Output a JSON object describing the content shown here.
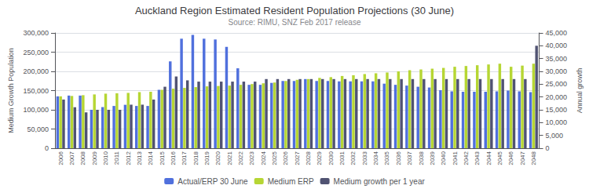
{
  "chart_data": {
    "type": "bar",
    "title": "Auckland Region Estimated Resident Population Projections (30 June)",
    "subtitle": "Source: RIMU, SNZ Feb 2017 release",
    "ylabel": "Medium Growth Population",
    "y2label": "Annual growth",
    "categories": [
      "2006",
      "2007",
      "2008",
      "2009",
      "2010",
      "2011",
      "2012",
      "2013",
      "2014",
      "2015",
      "2016",
      "2017",
      "2018",
      "2019",
      "2020",
      "2021",
      "2022",
      "2023",
      "2024",
      "2025",
      "2026",
      "2027",
      "2028",
      "2029",
      "2030",
      "2031",
      "2032",
      "2033",
      "2034",
      "2035",
      "2036",
      "2037",
      "2038",
      "2039",
      "2040",
      "2041",
      "2042",
      "2043",
      "2044",
      "2045",
      "2046",
      "2047",
      "2048"
    ],
    "series": [
      {
        "name": "Actual/ERP 30 June",
        "values": [
          135000,
          137000,
          137000,
          100000,
          107000,
          110000,
          113000,
          110000,
          110000,
          152000,
          226000,
          285000,
          295000,
          285000,
          283000,
          264000,
          208000,
          165000,
          165000,
          170000,
          175000,
          175000,
          180000,
          175000,
          175000,
          174000,
          174000,
          174000,
          174000,
          168000,
          165000,
          163000,
          160000,
          158000,
          151000,
          148000,
          147000,
          147000,
          147000,
          148000,
          150000,
          148000,
          146000
        ]
      },
      {
        "name": "Medium ERP",
        "values": [
          135000,
          136000,
          138000,
          140000,
          142000,
          143000,
          144000,
          146000,
          147000,
          152000,
          155000,
          157000,
          159000,
          161000,
          162000,
          163000,
          165000,
          167000,
          169000,
          171000,
          175000,
          178000,
          180000,
          183000,
          185000,
          188000,
          190000,
          193000,
          195000,
          197000,
          200000,
          203000,
          205000,
          207000,
          209000,
          212000,
          214000,
          216000,
          218000,
          220000,
          212000,
          215000,
          220000
        ]
      },
      {
        "name": "Medium growth per 1 year",
        "axis": "y2",
        "values": [
          19000,
          16000,
          14000,
          15000,
          15000,
          15000,
          17000,
          17000,
          19000,
          24000,
          28000,
          26500,
          26000,
          26000,
          26000,
          26000,
          26000,
          26000,
          27000,
          27000,
          27000,
          27000,
          27000,
          27000,
          27000,
          27000,
          27000,
          27000,
          27000,
          27000,
          27000,
          27000,
          27000,
          27000,
          27000,
          27000,
          27000,
          27000,
          27000,
          27000,
          27000,
          27000,
          40000
        ]
      }
    ],
    "ylim": [
      0,
      300000
    ],
    "yticks": [
      0,
      {
        "value": 50000,
        "label": "50,000"
      },
      {
        "value": 100000,
        "label": "100,000"
      },
      {
        "value": 150000,
        "label": "150,000"
      },
      {
        "value": 200000,
        "label": "200,000"
      },
      {
        "value": 250000,
        "label": "250,000"
      },
      {
        "value": 300000,
        "label": "300,000"
      }
    ],
    "y2lim": [
      0,
      45000
    ],
    "y2ticks": [
      0,
      {
        "value": 5000,
        "label": "5,000"
      },
      {
        "value": 10000,
        "label": "10,000"
      },
      {
        "value": 15000,
        "label": "15,000"
      },
      {
        "value": 20000,
        "label": "20,000"
      },
      {
        "value": 25000,
        "label": "25,000"
      },
      {
        "value": 30000,
        "label": "30,000"
      },
      {
        "value": 35000,
        "label": "35,000"
      },
      {
        "value": 40000,
        "label": "40,000"
      },
      {
        "value": 45000,
        "label": "45,000"
      }
    ],
    "grid": true,
    "legend": "bottom"
  }
}
